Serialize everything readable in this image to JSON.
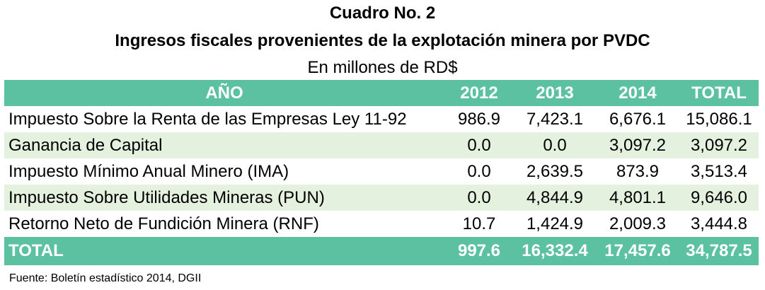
{
  "header": {
    "title": "Cuadro No. 2",
    "subtitle": "Ingresos fiscales provenientes de la explotación minera por PVDC",
    "units": "En millones de RD$"
  },
  "table": {
    "columns": [
      "AÑO",
      "2012",
      "2013",
      "2014",
      "TOTAL"
    ],
    "rows": [
      {
        "label": "Impuesto Sobre la Renta de las Empresas Ley 11-92",
        "values": [
          "986.9",
          "7,423.1",
          "6,676.1",
          "15,086.1"
        ]
      },
      {
        "label": "Ganancia de Capital",
        "values": [
          "0.0",
          "0.0",
          "3,097.2",
          "3,097.2"
        ]
      },
      {
        "label": "Impuesto Mínimo Anual Minero (IMA)",
        "values": [
          "0.0",
          "2,639.5",
          "873.9",
          "3,513.4"
        ]
      },
      {
        "label": "Impuesto Sobre Utilidades Mineras (PUN)",
        "values": [
          "0.0",
          "4,844.9",
          "4,801.1",
          "9,646.0"
        ]
      },
      {
        "label": "Retorno Neto de Fundición Minera (RNF)",
        "values": [
          "10.7",
          "1,424.9",
          "2,009.3",
          "3,444.8"
        ]
      }
    ],
    "total": {
      "label": "TOTAL",
      "values": [
        "997.6",
        "16,332.4",
        "17,457.6",
        "34,787.5"
      ]
    }
  },
  "footer": {
    "source": "Fuente: Boletín estadístico 2014, DGII"
  },
  "colors": {
    "header_bg": "#5cc1a0",
    "alt_row_bg": "#e4f1df"
  }
}
